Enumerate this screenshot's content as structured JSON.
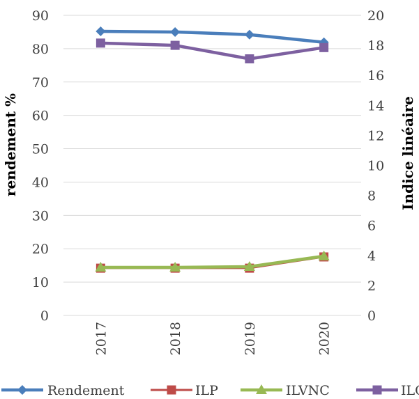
{
  "chart_data": {
    "type": "line",
    "categories": [
      "2017",
      "2018",
      "2019",
      "2020"
    ],
    "left_axis": {
      "title": "rendement %",
      "range": [
        0,
        90
      ],
      "ticks": [
        "0",
        "10",
        "20",
        "30",
        "40",
        "50",
        "60",
        "70",
        "80",
        "90"
      ]
    },
    "right_axis": {
      "title": "Indice linéaire",
      "range": [
        0,
        20
      ],
      "ticks": [
        "0",
        "2",
        "4",
        "6",
        "8",
        "10",
        "12",
        "14",
        "16",
        "18",
        "20"
      ]
    },
    "grid": true,
    "legend_position": "bottom",
    "series": [
      {
        "name": "Rendement",
        "axis": "left",
        "color": "#4a7ebb",
        "marker": "diamond",
        "values": [
          85.2,
          85.0,
          84.2,
          81.9
        ]
      },
      {
        "name": "ILP",
        "axis": "right",
        "color": "#be4b48",
        "marker": "square",
        "values": [
          3.15,
          3.15,
          3.15,
          3.9
        ]
      },
      {
        "name": "ILVNC",
        "axis": "right",
        "color": "#98b954",
        "marker": "triangle",
        "values": [
          3.2,
          3.2,
          3.25,
          3.95
        ]
      },
      {
        "name": "ILC",
        "axis": "right",
        "color": "#7d60a0",
        "marker": "square",
        "values": [
          18.15,
          18.0,
          17.1,
          17.85
        ]
      }
    ]
  }
}
